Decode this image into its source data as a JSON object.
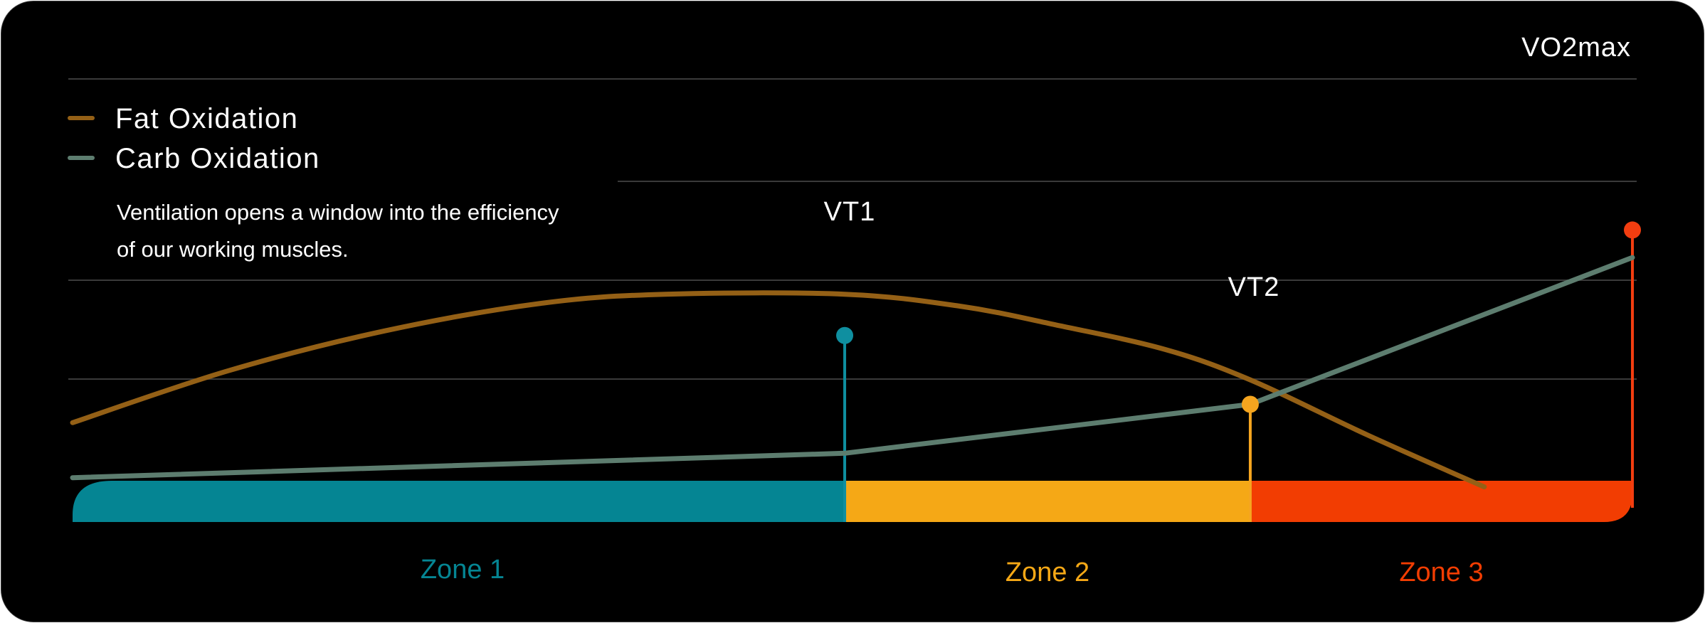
{
  "chart_data": {
    "type": "line",
    "title": "",
    "xlabel": "",
    "ylabel": "",
    "legend": {
      "placement": "top-left",
      "entries": [
        {
          "name": "Fat Oxidation",
          "color": "#946016"
        },
        {
          "name": "Carb Oxidation",
          "color": "#5d7d6f"
        }
      ]
    },
    "annotation": "Ventilation opens a window into the efficiency of our working muscles.",
    "xlim": [
      0,
      100
    ],
    "ylim": [
      0,
      100
    ],
    "grid": true,
    "series": [
      {
        "name": "Fat Oxidation",
        "color": "#946016",
        "points": [
          [
            0,
            39
          ],
          [
            10,
            56
          ],
          [
            20,
            69
          ],
          [
            30,
            78
          ],
          [
            38,
            81
          ],
          [
            49.5,
            81
          ],
          [
            57,
            77
          ],
          [
            63,
            71
          ],
          [
            70,
            63
          ],
          [
            75.5,
            53
          ],
          [
            83,
            35
          ],
          [
            90.5,
            18
          ]
        ]
      },
      {
        "name": "Carb Oxidation",
        "color": "#5d7d6f",
        "points": [
          [
            0,
            21
          ],
          [
            49.5,
            29
          ],
          [
            75.5,
            45
          ],
          [
            100,
            93
          ]
        ]
      }
    ],
    "thresholds": [
      {
        "label": "VT1",
        "x": 49.5,
        "y": 67.5,
        "color": "#0f8fa0"
      },
      {
        "label": "VT2",
        "x": 75.5,
        "y": 45,
        "color": "#f5a51f"
      },
      {
        "label": "VO2max",
        "x": 100,
        "y": 102,
        "color": "#f23d10"
      }
    ],
    "zones": [
      {
        "label": "Zone 1",
        "from": 0,
        "to": 49.5,
        "color": "#058593"
      },
      {
        "label": "Zone 2",
        "from": 49.5,
        "to": 75.5,
        "color": "#f5a816"
      },
      {
        "label": "Zone 3",
        "from": 75.5,
        "to": 100,
        "color": "#f23d02"
      }
    ]
  }
}
